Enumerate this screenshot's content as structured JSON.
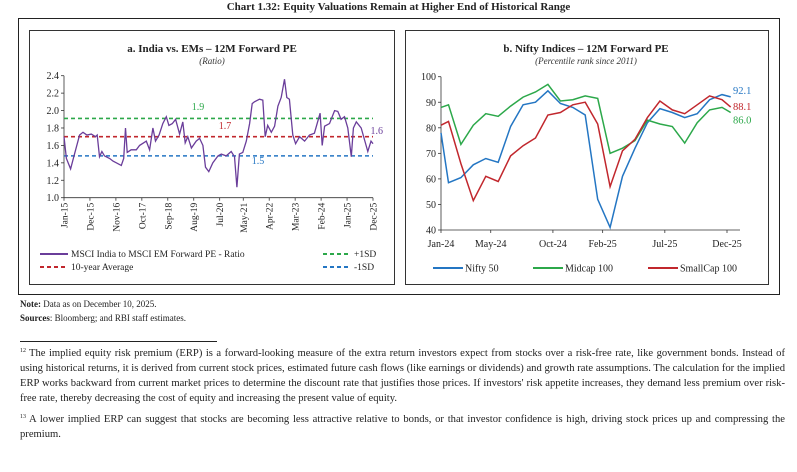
{
  "header": {
    "title": "Chart 1.32: Equity Valuations Remain at Higher End of Historical Range"
  },
  "colors": {
    "purple": "#6a3d9a",
    "green": "#2ca84a",
    "red": "#c1272d",
    "blue": "#2476c3",
    "axis": "#333333"
  },
  "chart_data": [
    {
      "type": "line",
      "title": "a. India vs. EMs – 12M Forward PE",
      "subtitle": "(Ratio)",
      "ylim": [
        1.0,
        2.4
      ],
      "yticks": [
        "1.0",
        "1.2",
        "1.4",
        "1.6",
        "1.8",
        "2.0",
        "2.2",
        "2.4"
      ],
      "xticks": [
        "Jan-15",
        "Dec-15",
        "Nov-16",
        "Oct-17",
        "Sep-18",
        "Aug-19",
        "Jul-20",
        "May-21",
        "Apr-22",
        "Mar-23",
        "Feb-24",
        "Jan-25",
        "Dec-25"
      ],
      "grid": false,
      "legend": "bottom",
      "series": [
        {
          "name": "MSCI India to MSCI EM Forward PE - Ratio",
          "color": "#6a3d9a",
          "style": "solid",
          "x": [
            "2015-01-01",
            "2015-02-01",
            "2015-03-25",
            "2015-05-15",
            "2015-07-20",
            "2015-09-03",
            "2015-10-22",
            "2015-12-18",
            "2016-02-12",
            "2016-03-03",
            "2016-04-03",
            "2016-05-03",
            "2016-06-06",
            "2016-08-12",
            "2016-09-24",
            "2016-11-06",
            "2017-01-10",
            "2017-02-10",
            "2017-03-03",
            "2017-03-25",
            "2017-05-15",
            "2017-07-20",
            "2017-09-03",
            "2017-10-25",
            "2017-11-28",
            "2018-01-10",
            "2018-02-22",
            "2018-03-25",
            "2018-05-10",
            "2018-06-28",
            "2018-08-12",
            "2018-09-15",
            "2018-10-28",
            "2018-12-10",
            "2019-02-01",
            "2019-03-12",
            "2019-04-12",
            "2019-05-15",
            "2019-07-01",
            "2019-09-03",
            "2019-10-15",
            "2019-11-28",
            "2020-01-01",
            "2020-02-12",
            "2020-04-03",
            "2020-06-10",
            "2020-07-22",
            "2020-09-24",
            "2020-11-28",
            "2021-01-10",
            "2021-02-10",
            "2021-03-12",
            "2021-04-25",
            "2021-06-10",
            "2021-07-22",
            "2021-08-25",
            "2021-09-24",
            "2021-11-28",
            "2022-01-10",
            "2022-02-10",
            "2022-03-12",
            "2022-04-28",
            "2022-06-10",
            "2022-07-22",
            "2022-09-03",
            "2022-10-15",
            "2022-11-15",
            "2022-12-18",
            "2023-02-01",
            "2023-03-06",
            "2023-04-28",
            "2023-07-01",
            "2023-09-03",
            "2023-11-06",
            "2024-01-18",
            "2024-02-15",
            "2024-03-15",
            "2024-05-18",
            "2024-07-22",
            "2024-09-03",
            "2024-10-15",
            "2024-11-28",
            "2025-01-10",
            "2025-02-25",
            "2025-03-22",
            "2025-04-28",
            "2025-07-01",
            "2025-09-25",
            "2025-11-06",
            "2025-12-01"
          ],
          "values": [
            1.7,
            1.45,
            1.33,
            1.5,
            1.72,
            1.75,
            1.72,
            1.73,
            1.7,
            1.72,
            1.47,
            1.53,
            1.48,
            1.45,
            1.42,
            1.4,
            1.37,
            1.45,
            1.8,
            1.52,
            1.55,
            1.55,
            1.6,
            1.63,
            1.65,
            1.55,
            1.8,
            1.65,
            1.72,
            1.85,
            1.93,
            1.83,
            1.85,
            1.9,
            1.73,
            1.87,
            1.63,
            1.7,
            1.57,
            1.65,
            1.68,
            1.6,
            1.35,
            1.3,
            1.4,
            1.48,
            1.5,
            1.48,
            1.53,
            1.47,
            1.12,
            1.5,
            1.52,
            1.65,
            1.85,
            2.08,
            2.1,
            2.13,
            2.12,
            1.7,
            1.83,
            1.75,
            1.82,
            2.05,
            2.15,
            2.36,
            2.15,
            2.13,
            1.72,
            1.62,
            1.7,
            1.65,
            1.72,
            1.74,
            1.97,
            1.6,
            1.82,
            1.85,
            2.0,
            1.99,
            1.9,
            1.93,
            1.8,
            1.47,
            1.8,
            1.87,
            1.8,
            1.53,
            1.65,
            1.62
          ]
        },
        {
          "name": "10-year Average",
          "color": "#c1272d",
          "style": "dashed",
          "value": 1.7,
          "label": "1.7"
        },
        {
          "name": "+1SD",
          "color": "#2ca84a",
          "style": "dashed",
          "value": 1.91,
          "label": "1.9"
        },
        {
          "name": "-1SD",
          "color": "#2476c3",
          "style": "dashed",
          "value": 1.48,
          "label": "1.5"
        }
      ],
      "annotations": [
        {
          "text": "1.6",
          "color": "#6a3d9a"
        }
      ]
    },
    {
      "type": "line",
      "title": "b. Nifty Indices – 12M Forward PE",
      "subtitle": "(Percentile rank since 2011)",
      "ylim": [
        40,
        100
      ],
      "yticks": [
        "40",
        "50",
        "60",
        "70",
        "80",
        "90",
        "100"
      ],
      "xticks": [
        "Jan-24",
        "May-24",
        "Oct-24",
        "Feb-25",
        "Jul-25",
        "Dec-25"
      ],
      "grid": false,
      "legend": "bottom",
      "x": [
        "2024-01-01",
        "2024-01-19",
        "2024-02-19",
        "2024-03-19",
        "2024-04-19",
        "2024-05-19",
        "2024-06-19",
        "2024-07-19",
        "2024-08-19",
        "2024-09-19",
        "2024-10-19",
        "2024-11-19",
        "2024-12-19",
        "2025-01-19",
        "2025-02-19",
        "2025-03-19",
        "2025-04-19",
        "2025-05-19",
        "2025-06-19",
        "2025-07-19",
        "2025-08-19",
        "2025-09-19",
        "2025-10-19",
        "2025-11-19",
        "2025-12-10"
      ],
      "series": [
        {
          "name": "Nifty 50",
          "color": "#2476c3",
          "end_label": "92.1",
          "values": [
            78,
            58.5,
            60.5,
            65.5,
            68,
            66.5,
            80.5,
            89,
            90,
            94.5,
            89.5,
            88,
            85,
            52,
            41,
            61,
            72,
            82,
            87.5,
            86,
            84,
            85.5,
            91,
            93,
            92.1
          ]
        },
        {
          "name": "Midcap 100",
          "color": "#2ca84a",
          "end_label": "86.0",
          "values": [
            88,
            89,
            73.5,
            81,
            85.5,
            84.5,
            88.5,
            92,
            94,
            97,
            90.5,
            91,
            92.5,
            91.5,
            70,
            72,
            75,
            83,
            81.5,
            80.5,
            74,
            82,
            87,
            88,
            86.0
          ]
        },
        {
          "name": "SmallCap 100",
          "color": "#c1272d",
          "end_label": "88.1",
          "values": [
            81,
            82.5,
            66,
            51.5,
            61,
            59,
            69,
            73,
            76,
            85,
            86,
            89,
            90,
            81.5,
            57,
            71,
            75.5,
            84,
            90.5,
            87,
            85.5,
            89,
            92.5,
            91,
            88.1
          ]
        }
      ]
    }
  ],
  "notes": {
    "note_label": "Note:",
    "note_text": " Data as on December 10, 2025.",
    "sources_label": "Sources",
    "sources_text": ": Bloomberg; and RBI staff estimates."
  },
  "footnotes": [
    {
      "num": "12",
      "text": "The implied equity risk premium (ERP) is a forward-looking measure of the extra return investors expect from stocks over a risk-free rate, like government bonds. Instead of using historical returns, it is derived from current stock prices, estimated future cash flows (like earnings or dividends) and growth rate assumptions. The calculation for the implied ERP works backward from current market prices to determine the discount rate that justifies those prices. If investors' risk appetite increases, they demand less premium over risk-free rate, thereby decreasing the cost of equity and increasing the present value of equity."
    },
    {
      "num": "13",
      "text": "A lower implied ERP can suggest that stocks are becoming less attractive relative to bonds, or that investor confidence is high, driving stock prices up and compressing the premium."
    }
  ]
}
